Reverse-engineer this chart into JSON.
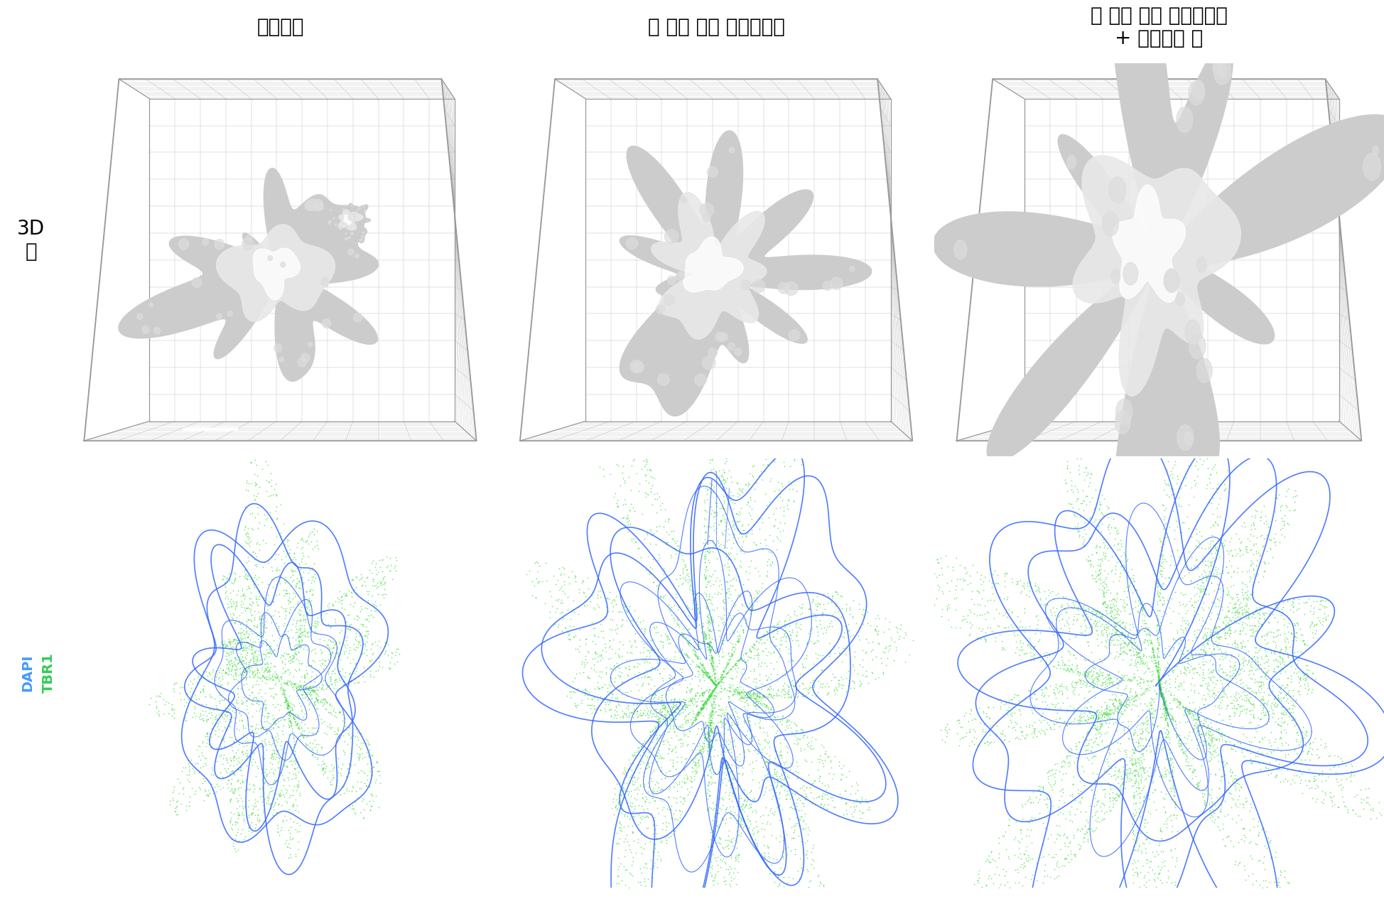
{
  "title_col1": "매트리젤",
  "title_col2": "뇌 조직 모사 하이드로젤",
  "title_col3": "뇌 조직 모사 하이드로젤\n+ 미세유체 칩",
  "row1_label_line1": "서",
  "row1_label_line2": "구",
  "row1_label_line3": "3D",
  "row2_label_tbr1": "TBR1",
  "row2_label_dapi": "DAPI",
  "bg_top": "#1a1a1a",
  "bg_bottom": "#000000",
  "bg_page": "#ffffff",
  "grid_color": "#888888",
  "organoid_white": "#e0e0e0",
  "blue_line": "#3366ff",
  "green_dot": "#44dd44",
  "tbr1_color": "#33cc55",
  "dapi_color": "#4499ff",
  "title_fontsize": 20,
  "label_fontsize": 20,
  "scalebar_color": "#ffffff"
}
